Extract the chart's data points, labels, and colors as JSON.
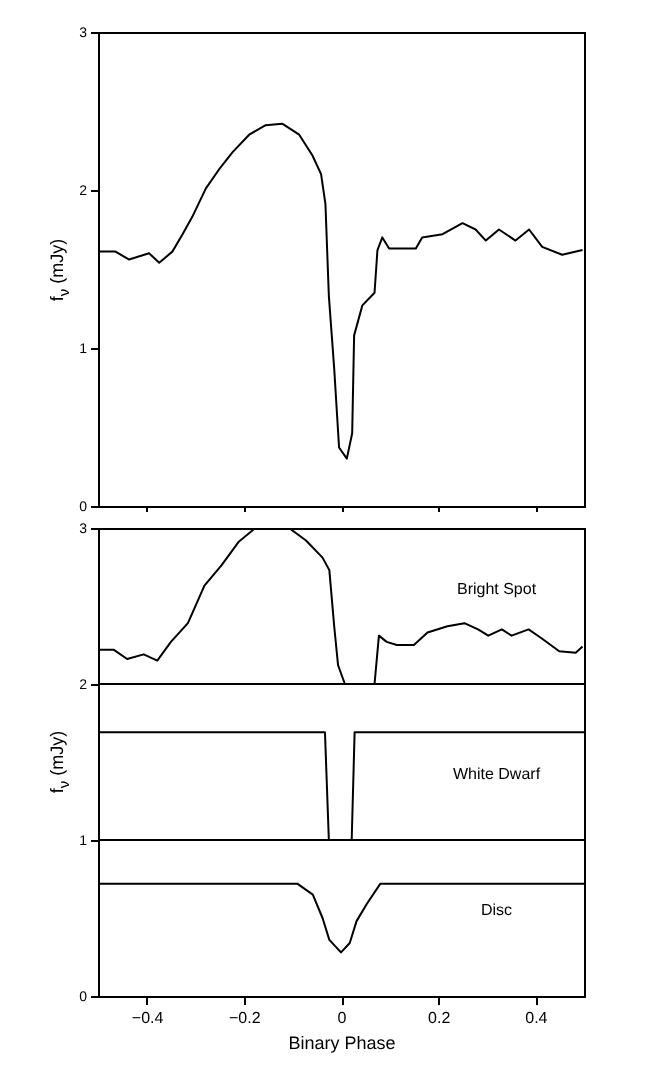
{
  "chart_data": [
    {
      "type": "line",
      "ylabel": "f$_{ν}$ (mJy)",
      "color": "#000000",
      "xlim": [
        -0.5,
        0.5
      ],
      "xticks": [
        -0.4,
        -0.2,
        0,
        0.2,
        0.4
      ],
      "ylim": [
        0,
        3
      ],
      "yticks": [
        0,
        1,
        2,
        3
      ],
      "tick_labels": "y",
      "grid": false,
      "x": [
        -0.498,
        -0.464,
        -0.436,
        -0.395,
        -0.374,
        -0.347,
        -0.326,
        -0.306,
        -0.278,
        -0.251,
        -0.223,
        -0.189,
        -0.155,
        -0.121,
        -0.086,
        -0.059,
        -0.041,
        -0.032,
        -0.025,
        -0.014,
        -0.004,
        0.012,
        0.023,
        0.027,
        0.044,
        0.069,
        0.075,
        0.085,
        0.099,
        0.154,
        0.167,
        0.209,
        0.25,
        0.277,
        0.298,
        0.325,
        0.359,
        0.387,
        0.414,
        0.455,
        0.497
      ],
      "values": [
        1.61,
        1.61,
        1.56,
        1.6,
        1.54,
        1.61,
        1.72,
        1.83,
        2.01,
        2.13,
        2.24,
        2.35,
        2.41,
        2.42,
        2.35,
        2.22,
        2.1,
        1.91,
        1.33,
        0.87,
        0.37,
        0.3,
        0.46,
        1.08,
        1.27,
        1.35,
        1.62,
        1.7,
        1.63,
        1.63,
        1.7,
        1.72,
        1.79,
        1.75,
        1.68,
        1.75,
        1.68,
        1.75,
        1.64,
        1.59,
        1.62
      ]
    },
    {
      "type": "line",
      "xlabel": "Binary Phase",
      "ylabel": "f$_{ν}$ (mJy)",
      "xlim": [
        -0.5,
        0.5
      ],
      "xticks": [
        -0.4,
        -0.2,
        0,
        0.2,
        0.4
      ],
      "ylim": [
        0,
        3
      ],
      "yticks": [
        0,
        1,
        2,
        3
      ],
      "grid": false,
      "ref_lines": [
        {
          "axis": "y",
          "value": 1
        },
        {
          "axis": "y",
          "value": 2
        }
      ],
      "series": [
        {
          "name": "Bright Spot",
          "color": "#000000",
          "x": [
            -0.5,
            -0.468,
            -0.44,
            -0.406,
            -0.378,
            -0.35,
            -0.315,
            -0.281,
            -0.246,
            -0.211,
            -0.176,
            -0.142,
            -0.107,
            -0.072,
            -0.038,
            -0.024,
            -0.014,
            -0.006,
            0.008,
            0.069,
            0.078,
            0.094,
            0.115,
            0.15,
            0.178,
            0.219,
            0.254,
            0.282,
            0.303,
            0.331,
            0.351,
            0.386,
            0.414,
            0.449,
            0.483,
            0.497
          ],
          "values": [
            2.22,
            2.22,
            2.16,
            2.19,
            2.15,
            2.27,
            2.39,
            2.63,
            2.76,
            2.91,
            3.0,
            3.0,
            3.0,
            2.92,
            2.81,
            2.73,
            2.37,
            2.12,
            2.0,
            2.0,
            2.31,
            2.27,
            2.25,
            2.25,
            2.33,
            2.37,
            2.39,
            2.35,
            2.31,
            2.35,
            2.31,
            2.35,
            2.29,
            2.21,
            2.2,
            2.24
          ]
        },
        {
          "name": "White Dwarf",
          "color": "#000000",
          "x": [
            -0.5,
            -0.033,
            -0.025,
            0.022,
            0.028,
            0.5
          ],
          "values": [
            1.69,
            1.69,
            1.0,
            1.0,
            1.69,
            1.69
          ]
        },
        {
          "name": "Disc",
          "color": "#000000",
          "x": [
            -0.5,
            -0.09,
            -0.058,
            -0.038,
            -0.024,
            0,
            0.018,
            0.032,
            0.053,
            0.081,
            0.5
          ],
          "values": [
            0.72,
            0.72,
            0.65,
            0.5,
            0.36,
            0.28,
            0.34,
            0.48,
            0.59,
            0.72,
            0.72
          ]
        }
      ]
    }
  ]
}
